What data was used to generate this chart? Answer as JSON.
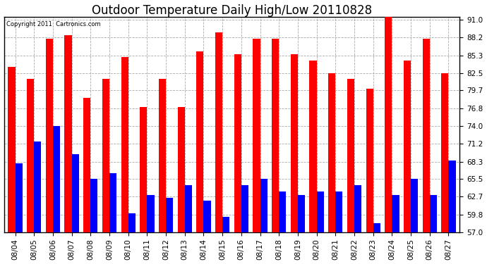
{
  "title": "Outdoor Temperature Daily High/Low 20110828",
  "copyright": "Copyright 2011  Cartronics.com",
  "dates": [
    "08/04",
    "08/05",
    "08/06",
    "08/07",
    "08/08",
    "08/09",
    "08/10",
    "08/11",
    "08/12",
    "08/13",
    "08/14",
    "08/15",
    "08/16",
    "08/17",
    "08/18",
    "08/19",
    "08/20",
    "08/21",
    "08/22",
    "08/23",
    "08/24",
    "08/25",
    "08/26",
    "08/27"
  ],
  "highs": [
    83.5,
    81.5,
    88.0,
    88.5,
    78.5,
    81.5,
    85.0,
    77.0,
    81.5,
    77.0,
    86.0,
    89.0,
    85.5,
    88.0,
    88.0,
    85.5,
    84.5,
    82.5,
    81.5,
    80.0,
    91.5,
    84.5,
    88.0,
    82.5
  ],
  "lows": [
    68.0,
    71.5,
    74.0,
    69.5,
    65.5,
    66.5,
    60.0,
    63.0,
    62.5,
    64.5,
    62.0,
    59.5,
    64.5,
    65.5,
    63.5,
    63.0,
    63.5,
    63.5,
    64.5,
    58.5,
    63.0,
    65.5,
    63.0,
    68.5
  ],
  "high_color": "#ff0000",
  "low_color": "#0000ff",
  "bg_color": "#ffffff",
  "grid_color": "#aaaaaa",
  "yticks": [
    57.0,
    59.8,
    62.7,
    65.5,
    68.3,
    71.2,
    74.0,
    76.8,
    79.7,
    82.5,
    85.3,
    88.2,
    91.0
  ],
  "ymin": 57.0,
  "ymax": 91.5,
  "bar_width": 0.38,
  "title_fontsize": 12,
  "tick_fontsize": 7.5,
  "copyright_fontsize": 6.0
}
